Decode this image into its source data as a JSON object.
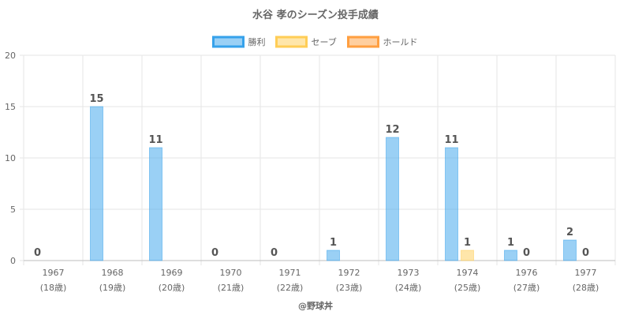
{
  "chart_data": {
    "type": "bar",
    "title": "水谷 孝のシーズン投手成績",
    "credit": "@野球丼",
    "categories": [
      "1967",
      "1968",
      "1969",
      "1970",
      "1971",
      "1972",
      "1973",
      "1974",
      "1976",
      "1977"
    ],
    "category_sublabels": [
      "(18歳)",
      "(19歳)",
      "(20歳)",
      "(21歳)",
      "(22歳)",
      "(23歳)",
      "(24歳)",
      "(25歳)",
      "(27歳)",
      "(28歳)"
    ],
    "series": [
      {
        "name": "勝利",
        "color": "#36a2eb",
        "values": [
          0,
          15,
          11,
          0,
          0,
          1,
          12,
          11,
          1,
          2
        ],
        "labels": [
          "0",
          "15",
          "11",
          "0",
          "0",
          "1",
          "12",
          "11",
          "1",
          "2"
        ]
      },
      {
        "name": "セーブ",
        "color": "#ffcd56",
        "values": [
          null,
          null,
          null,
          null,
          null,
          null,
          null,
          1,
          0,
          0
        ],
        "labels": [
          "",
          "",
          "",
          "",
          "",
          "",
          "",
          "1",
          "0",
          "0"
        ]
      },
      {
        "name": "ホールド",
        "color": "#ff9f40",
        "values": [
          null,
          null,
          null,
          null,
          null,
          null,
          null,
          null,
          null,
          null
        ],
        "labels": [
          "",
          "",
          "",
          "",
          "",
          "",
          "",
          "",
          "",
          ""
        ]
      }
    ],
    "ylim": [
      0,
      20
    ],
    "yticks": [
      "0",
      "5",
      "10",
      "15",
      "20"
    ],
    "grid": true,
    "legend_position": "top"
  }
}
